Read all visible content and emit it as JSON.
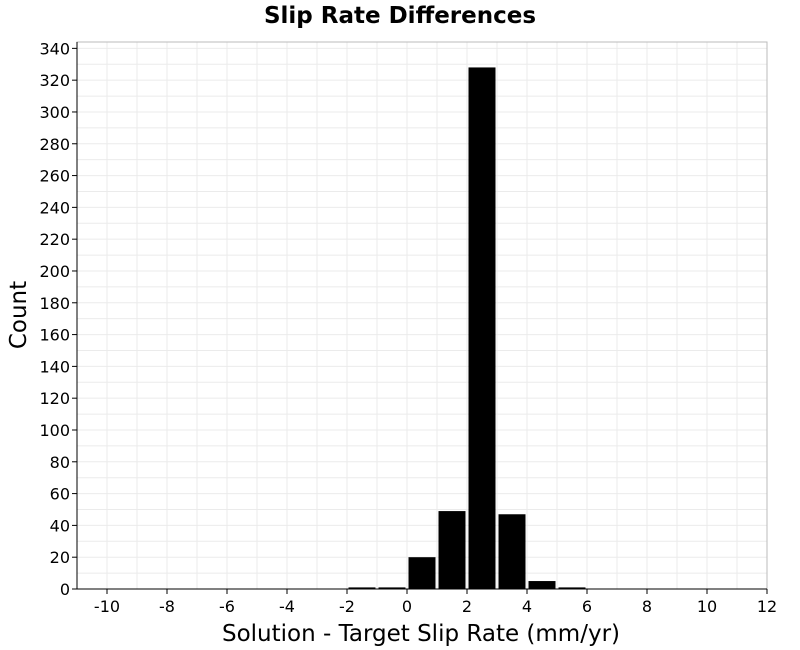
{
  "chart_data": {
    "type": "bar",
    "title": "Slip Rate Differences",
    "xlabel": "Solution - Target Slip Rate (mm/yr)",
    "ylabel": "Count",
    "xlim": [
      -11,
      12
    ],
    "ylim": [
      0,
      344
    ],
    "x_ticks": [
      -10,
      -8,
      -6,
      -4,
      -2,
      0,
      2,
      4,
      6,
      8,
      10,
      12
    ],
    "x_tick_labels": [
      "-10",
      "-8",
      "-6",
      "-4",
      "-2",
      "0",
      "2",
      "4",
      "6",
      "8",
      "10",
      "12"
    ],
    "y_ticks": [
      0,
      20,
      40,
      60,
      80,
      100,
      120,
      140,
      160,
      180,
      200,
      220,
      240,
      260,
      280,
      300,
      320,
      340
    ],
    "y_tick_labels": [
      "0",
      "20",
      "40",
      "60",
      "80",
      "100",
      "120",
      "140",
      "160",
      "180",
      "200",
      "220",
      "240",
      "260",
      "280",
      "300",
      "320",
      "340"
    ],
    "bin_width": 1,
    "bins": [
      {
        "x": -1.5,
        "value": 1
      },
      {
        "x": -0.5,
        "value": 1
      },
      {
        "x": 0.5,
        "value": 20
      },
      {
        "x": 1.5,
        "value": 49
      },
      {
        "x": 2.5,
        "value": 328
      },
      {
        "x": 3.5,
        "value": 47
      },
      {
        "x": 4.5,
        "value": 5
      },
      {
        "x": 5.5,
        "value": 1
      }
    ],
    "grid": true,
    "colors": {
      "bar": "#000000",
      "grid": "#ebebeb",
      "frame": "#bbbbbb",
      "axis": "#000000"
    }
  }
}
